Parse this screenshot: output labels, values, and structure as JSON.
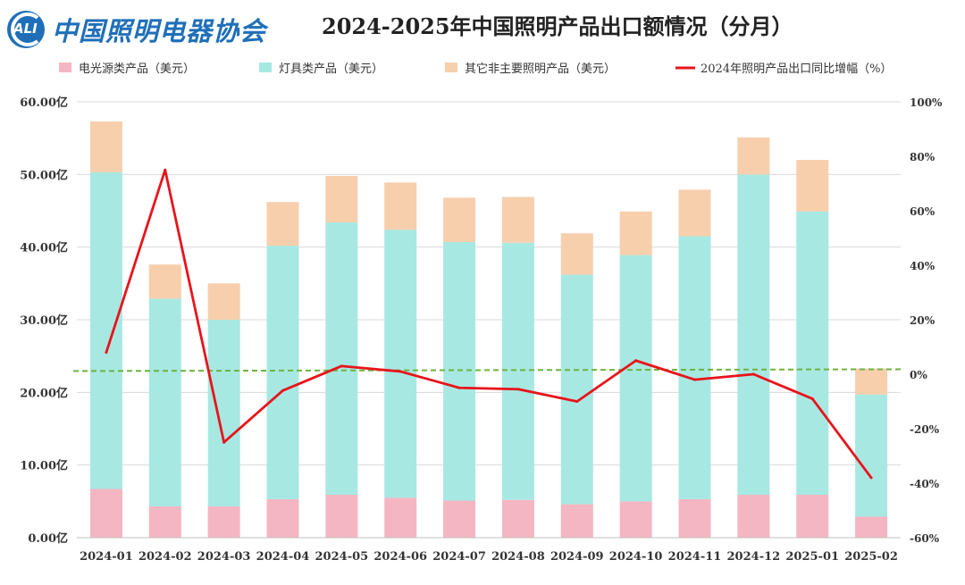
{
  "header": {
    "logo_letters": "ALI",
    "logo_text": "中国照明电器协会",
    "title": "2024-2025年中国照明产品出口额情况（分月）"
  },
  "chart_data": {
    "type": "bar",
    "stacked": true,
    "categories": [
      "2024-01",
      "2024-02",
      "2024-03",
      "2024-04",
      "2024-05",
      "2024-06",
      "2024-07",
      "2024-08",
      "2024-09",
      "2024-10",
      "2024-11",
      "2024-12",
      "2025-01",
      "2025-02"
    ],
    "series": [
      {
        "name": "电光源类产品（美元）",
        "color": "#f4b6c2",
        "values": [
          6.7,
          4.3,
          4.3,
          5.3,
          5.9,
          5.5,
          5.1,
          5.2,
          4.6,
          5.0,
          5.3,
          5.9,
          5.9,
          2.9
        ]
      },
      {
        "name": "灯具类产品（美元）",
        "color": "#a8e8e2",
        "values": [
          43.6,
          28.6,
          25.7,
          34.9,
          37.5,
          36.9,
          35.6,
          35.4,
          31.6,
          33.9,
          36.2,
          44.1,
          39.0,
          16.8
        ]
      },
      {
        "name": "其它非主要照明产品（美元）",
        "color": "#f7cfad",
        "values": [
          7.0,
          4.7,
          5.0,
          6.0,
          6.4,
          6.5,
          6.1,
          6.3,
          5.7,
          6.0,
          6.4,
          5.1,
          7.1,
          3.6
        ]
      }
    ],
    "line": {
      "name": "2024年照明产品出口同比增幅（%）",
      "color": "#e8141b",
      "values": [
        8,
        75,
        -25,
        -6,
        3,
        1,
        -5,
        -5.5,
        -10,
        5,
        -2,
        0,
        -9,
        -38
      ]
    },
    "reference_line": {
      "value": 1.5,
      "color": "#6db33f"
    },
    "y_left": {
      "min": 0,
      "max": 60,
      "step": 10,
      "ticks": [
        "0.00亿",
        "10.00亿",
        "20.00亿",
        "30.00亿",
        "40.00亿",
        "50.00亿",
        "60.00亿"
      ]
    },
    "y_right": {
      "min": -60,
      "max": 100,
      "step": 20,
      "ticks": [
        "-60%",
        "-40%",
        "-20%",
        "0%",
        "20%",
        "40%",
        "60%",
        "80%",
        "100%"
      ]
    },
    "legend_position": "top"
  }
}
